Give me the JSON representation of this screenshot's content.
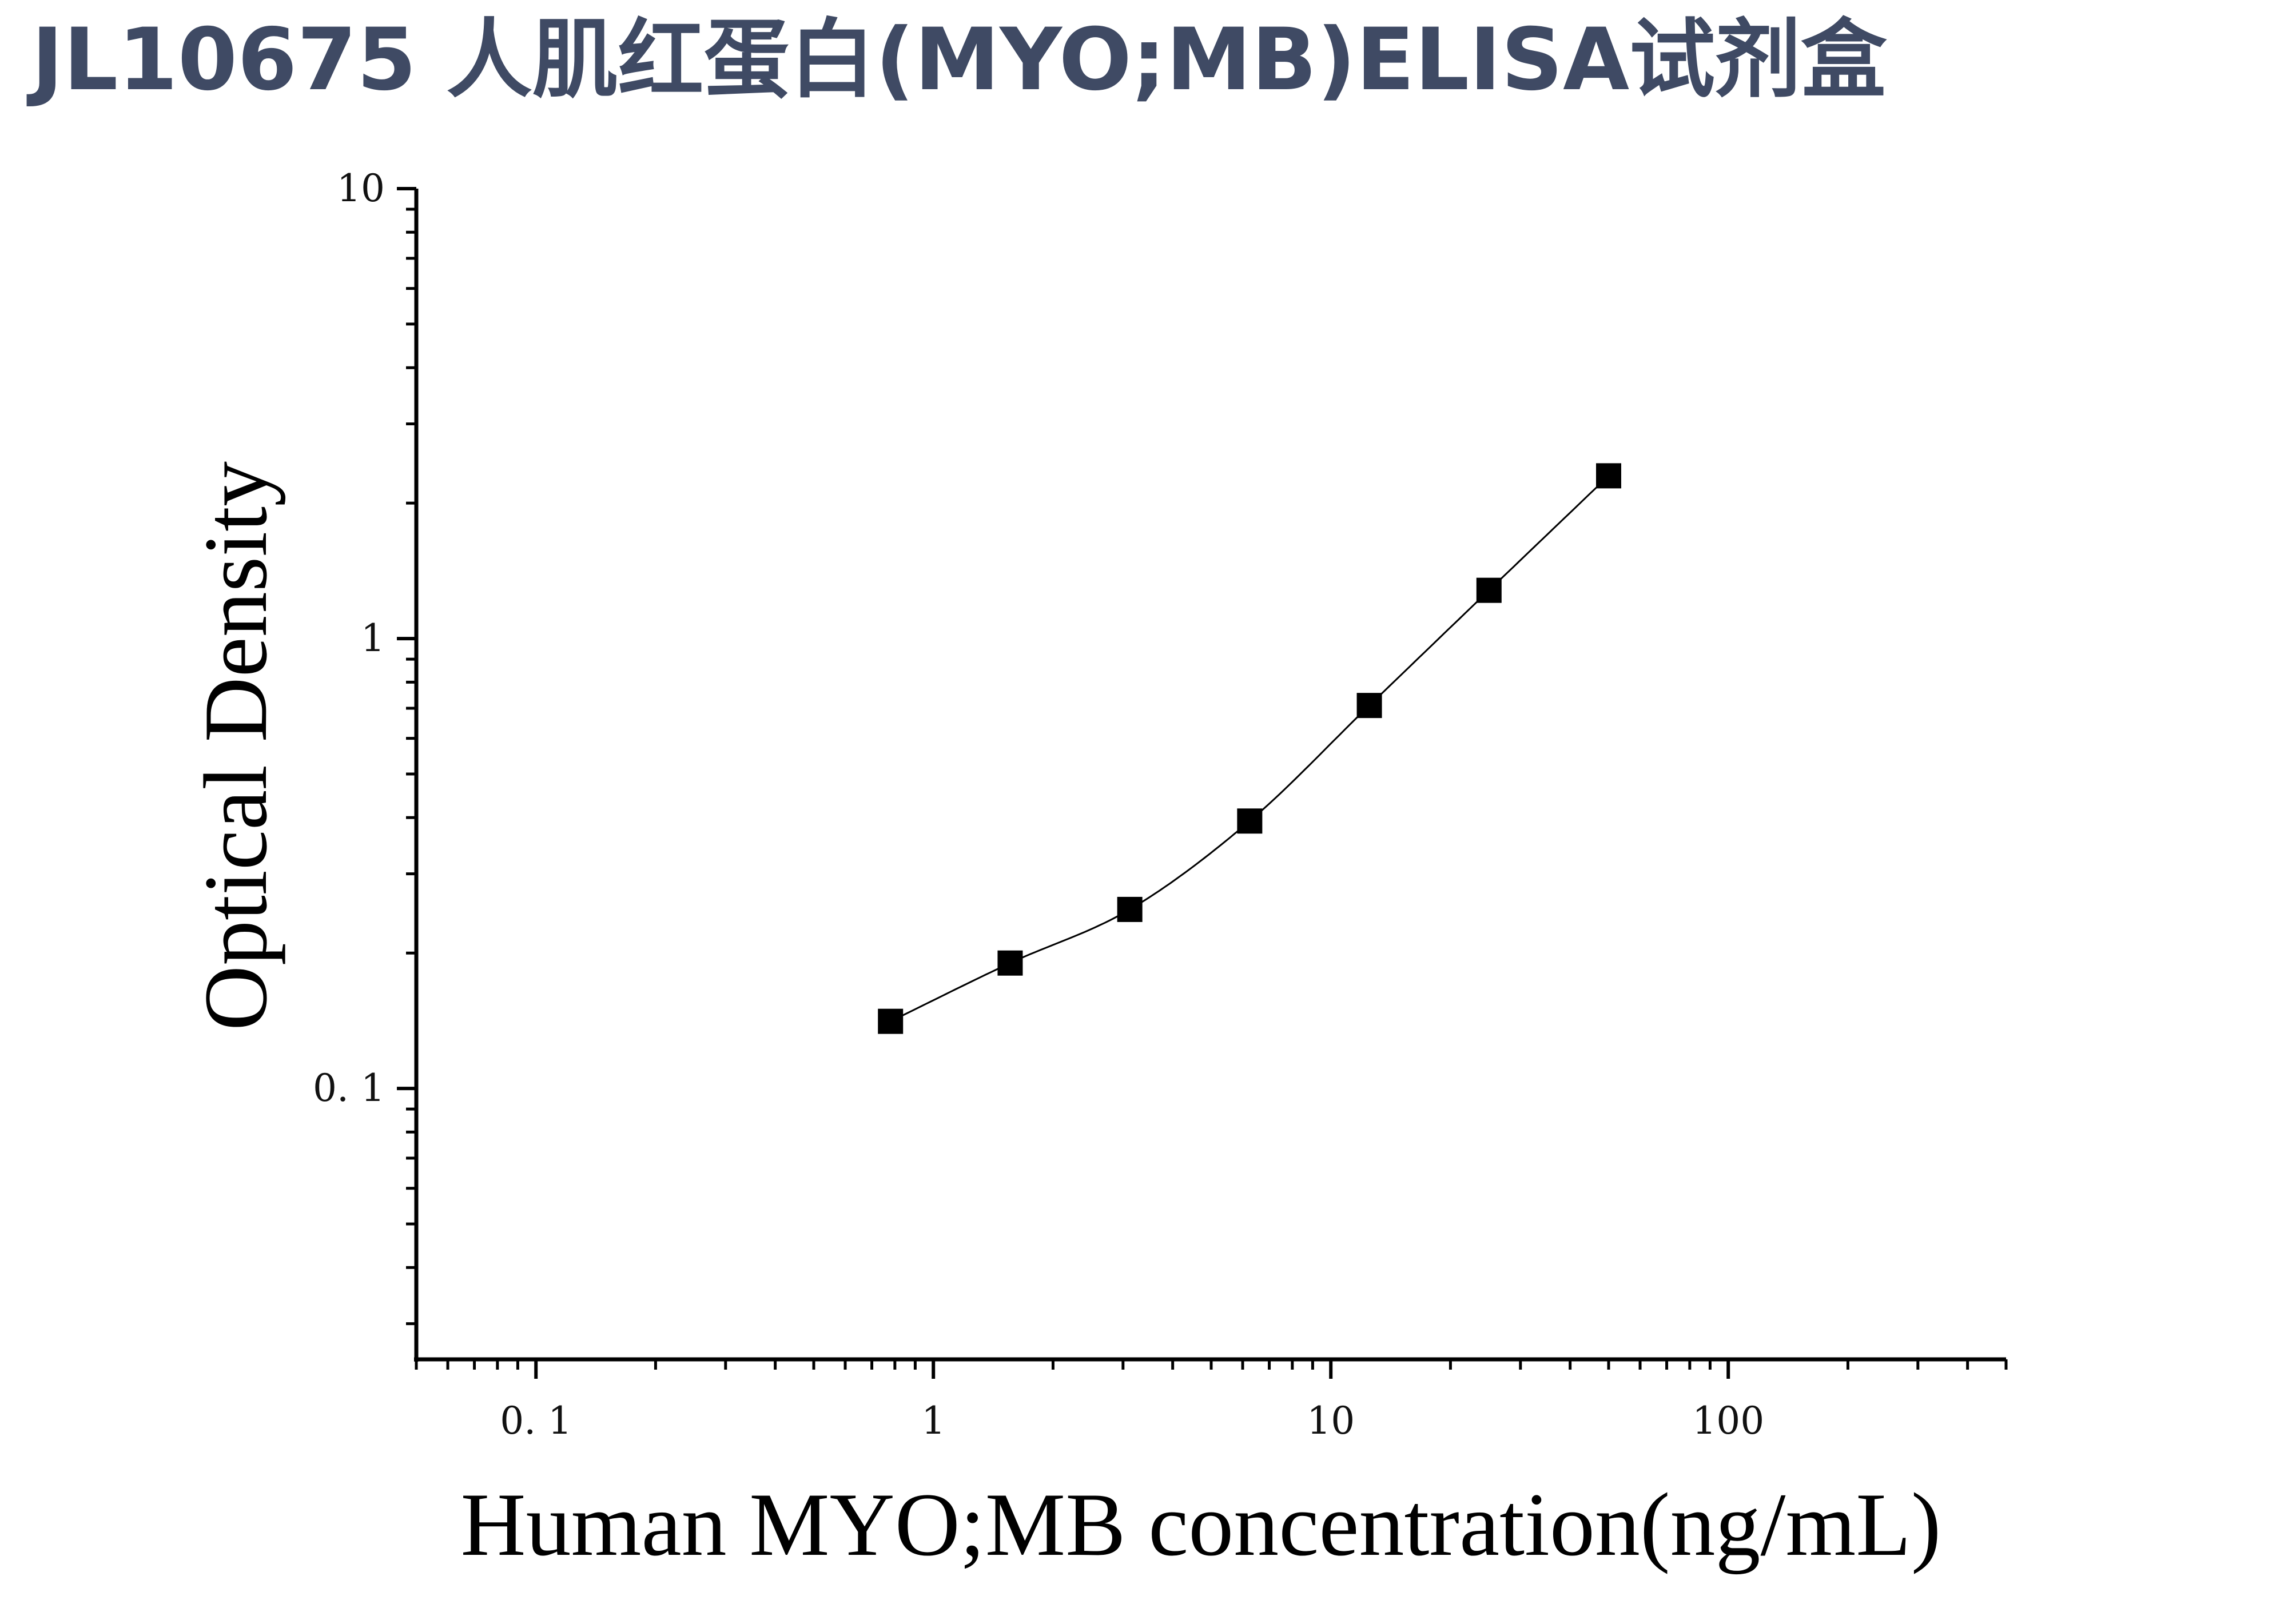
{
  "page": {
    "title": "JL10675 人肌红蛋白(MYO;MB)ELISA试剂盒"
  },
  "chart_data": {
    "type": "scatter",
    "title": "JL10675 人肌红蛋白(MYO;MB)ELISA试剂盒",
    "xlabel": "Human MYO;MB concentration(ng/mL)",
    "ylabel": "Optical Density",
    "xscale": "log",
    "yscale": "log",
    "xlim": [
      0.05,
      500
    ],
    "ylim": [
      0.025,
      10
    ],
    "xticks": [
      0.1,
      1,
      10,
      100
    ],
    "xtick_labels": [
      "0. 1",
      "1",
      "10",
      "100"
    ],
    "yticks": [
      0.1,
      1,
      10
    ],
    "ytick_labels": [
      "0. 1",
      "1",
      "10"
    ],
    "grid": false,
    "legend": "none",
    "marker": "square",
    "color": "#000000",
    "points": [
      {
        "x": 0.78,
        "y": 0.141
      },
      {
        "x": 1.56,
        "y": 0.19
      },
      {
        "x": 3.12,
        "y": 0.25
      },
      {
        "x": 6.25,
        "y": 0.393
      },
      {
        "x": 12.5,
        "y": 0.71
      },
      {
        "x": 25,
        "y": 1.28
      },
      {
        "x": 50,
        "y": 2.3
      }
    ],
    "fit_curve": true
  }
}
